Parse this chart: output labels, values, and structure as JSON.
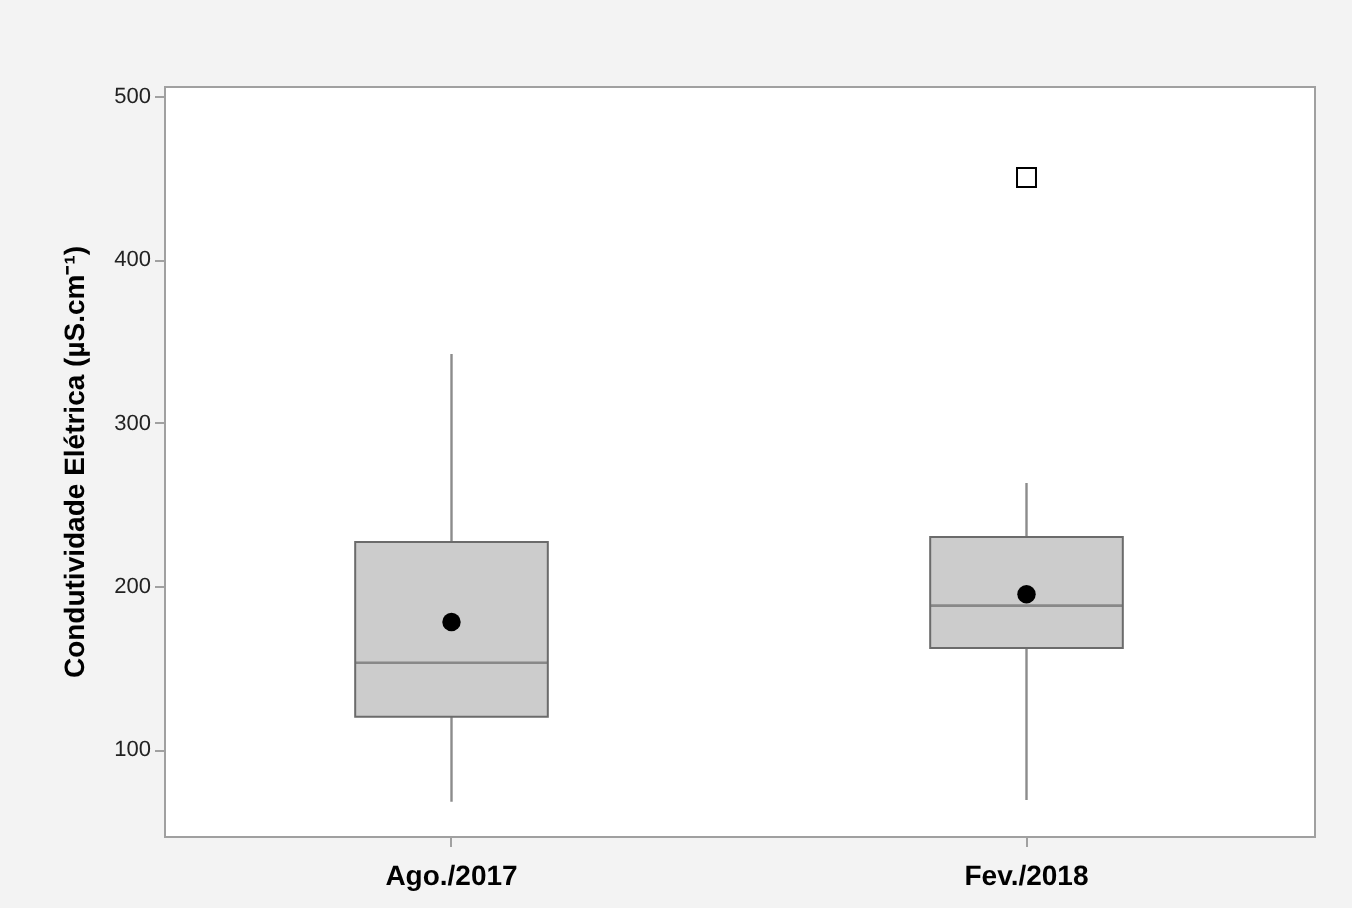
{
  "chart_data": {
    "type": "box",
    "categories": [
      "Ago./2017",
      "Fev./2018"
    ],
    "ylabel": "Condutividade Elétrica (µS.cm⁻¹)",
    "series": [
      {
        "color": "#cccccc",
        "boxes": [
          {
            "low": 68,
            "q1": 120,
            "median": 153,
            "q3": 227,
            "high": 342,
            "mean": 178
          },
          {
            "low": 69,
            "q1": 162,
            "median": 188,
            "q3": 230,
            "high": 263,
            "mean": 195,
            "outliers": [
              450
            ]
          }
        ]
      }
    ],
    "ylim": [
      47,
      506
    ],
    "yticks": [
      100,
      200,
      300,
      400,
      500
    ],
    "grid": false
  }
}
